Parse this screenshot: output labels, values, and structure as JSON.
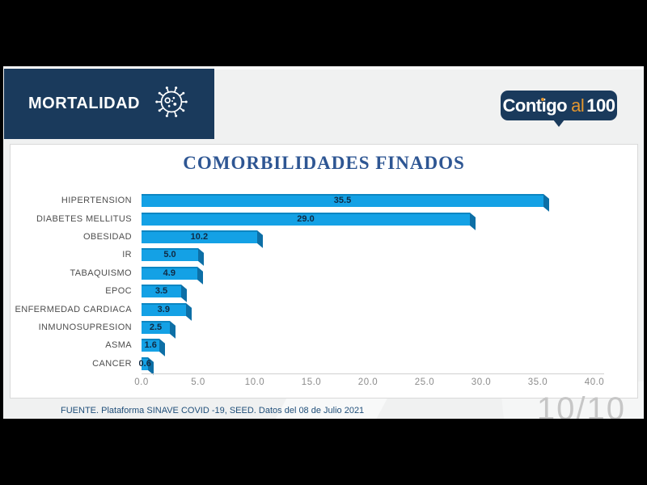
{
  "header": {
    "section_label": "MORTALIDAD",
    "logo": {
      "brand": "Contigo",
      "mid": "al",
      "num": "100"
    }
  },
  "chart_data": {
    "type": "bar",
    "orientation": "horizontal",
    "title": "COMORBILIDADES FINADOS",
    "categories": [
      "HIPERTENSION",
      "DIABETES MELLITUS",
      "OBESIDAD",
      "IR",
      "TABAQUISMO",
      "EPOC",
      "ENFERMEDAD CARDIACA",
      "INMUNOSUPRESION",
      "ASMA",
      "CANCER"
    ],
    "values": [
      35.5,
      29.0,
      10.2,
      5.0,
      4.9,
      3.5,
      3.9,
      2.5,
      1.6,
      0.6
    ],
    "xticks": [
      0.0,
      5.0,
      10.0,
      15.0,
      20.0,
      25.0,
      30.0,
      35.0,
      40.0
    ],
    "xlim": [
      0,
      40
    ],
    "xlabel": "",
    "ylabel": "",
    "grid": false,
    "legend": false,
    "bar_color": "#14a1e5",
    "bar_side_color": "#0d6fa6"
  },
  "footer": {
    "source": "FUENTE. Plataforma SINAVE COVID -19, SEED. Datos del 08 de Julio 2021",
    "page_indicator": "10/10"
  },
  "colors": {
    "panel_navy": "#1a3a5c",
    "title_blue": "#2e5693",
    "accent_orange": "#e2962f",
    "footer_blue": "#1f4e79"
  }
}
